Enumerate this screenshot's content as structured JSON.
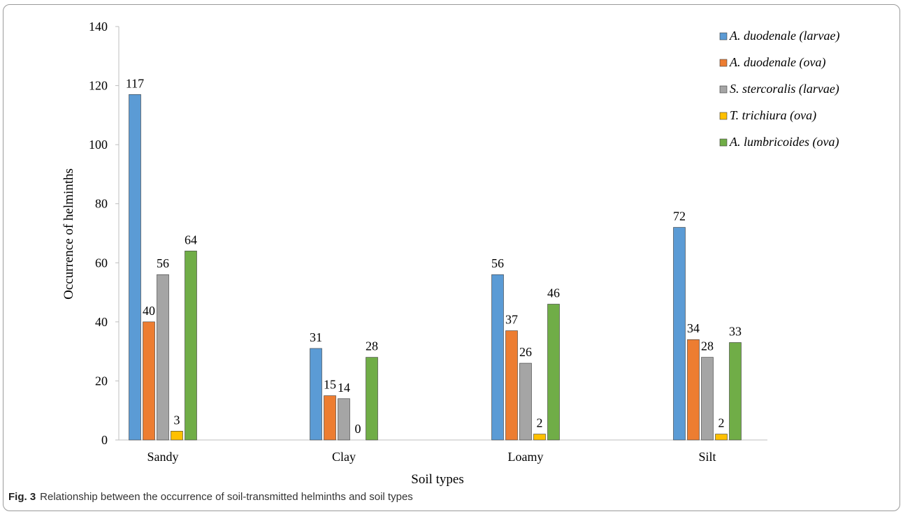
{
  "chart_data": {
    "type": "bar",
    "title": "",
    "xlabel": "Soil types",
    "ylabel": "Occurrence of helminths",
    "categories": [
      "Sandy",
      "Clay",
      "Loamy",
      "Silt"
    ],
    "ylim": [
      0,
      140
    ],
    "yticks": [
      0,
      20,
      40,
      60,
      80,
      100,
      120,
      140
    ],
    "grid": false,
    "legend_position": "top-right",
    "series": [
      {
        "name": "A. duodenale (larvae)",
        "color": "#5b9bd5",
        "values": [
          117,
          31,
          56,
          72
        ]
      },
      {
        "name": "A. duodenale (ova)",
        "color": "#ed7d31",
        "values": [
          40,
          15,
          37,
          34
        ]
      },
      {
        "name": "S. stercoralis (larvae)",
        "color": "#a5a5a5",
        "values": [
          56,
          14,
          26,
          28
        ]
      },
      {
        "name": "T. trichiura (ova)",
        "color": "#ffc000",
        "values": [
          3,
          0,
          2,
          2
        ]
      },
      {
        "name": "A. lumbricoides (ova)",
        "color": "#70ad47",
        "values": [
          64,
          28,
          46,
          33
        ]
      }
    ]
  },
  "caption": {
    "label": "Fig. 3",
    "text": "Relationship between the occurrence of soil-transmitted helminths and soil types"
  }
}
